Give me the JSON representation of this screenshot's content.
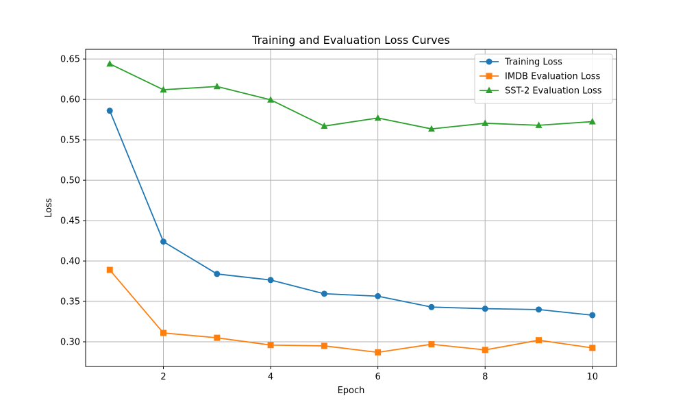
{
  "chart_data": {
    "type": "line",
    "title": "Training and Evaluation Loss Curves",
    "xlabel": "Epoch",
    "ylabel": "Loss",
    "x": [
      1,
      2,
      3,
      4,
      5,
      6,
      7,
      8,
      9,
      10
    ],
    "xlim": [
      0.55,
      10.45
    ],
    "ylim": [
      0.2695,
      0.662
    ],
    "xticks": [
      2,
      4,
      6,
      8,
      10
    ],
    "xtick_labels": [
      "2",
      "4",
      "6",
      "8",
      "10"
    ],
    "yticks": [
      0.3,
      0.35,
      0.4,
      0.45,
      0.5,
      0.55,
      0.6,
      0.65
    ],
    "ytick_labels": [
      "0.30",
      "0.35",
      "0.40",
      "0.45",
      "0.50",
      "0.55",
      "0.60",
      "0.65"
    ],
    "grid": true,
    "legend_position": "top-right",
    "series": [
      {
        "name": "Training Loss",
        "color": "#1f77b4",
        "marker": "circle",
        "values": [
          0.586,
          0.424,
          0.384,
          0.3765,
          0.3595,
          0.3565,
          0.343,
          0.341,
          0.34,
          0.333
        ]
      },
      {
        "name": "IMDB Evaluation Loss",
        "color": "#ff7f0e",
        "marker": "square",
        "values": [
          0.389,
          0.311,
          0.305,
          0.296,
          0.295,
          0.287,
          0.297,
          0.29,
          0.302,
          0.2925
        ]
      },
      {
        "name": "SST-2 Evaluation Loss",
        "color": "#2ca02c",
        "marker": "triangle",
        "values": [
          0.644,
          0.612,
          0.616,
          0.5995,
          0.567,
          0.577,
          0.5635,
          0.5705,
          0.568,
          0.5725
        ]
      }
    ]
  }
}
